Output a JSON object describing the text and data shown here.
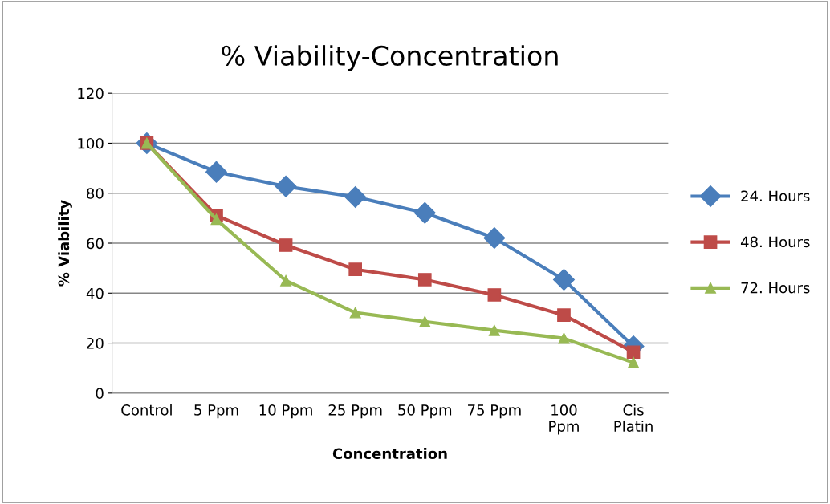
{
  "chart_data": {
    "type": "line",
    "title": "% Viability-Concentration",
    "xlabel": "Concentration",
    "ylabel": "% Viability",
    "categories": [
      "Control",
      "5 Ppm",
      "10 Ppm",
      "25 Ppm",
      "50 Ppm",
      "75 Ppm",
      "100\nPpm",
      "Cis\nPlatin"
    ],
    "series": [
      {
        "name": "24. Hours",
        "color": "#4a7ebb",
        "marker": "diamond",
        "values": [
          100,
          88.5,
          82.7,
          78.5,
          72.1,
          62.1,
          45.4,
          18.7
        ]
      },
      {
        "name": "48. Hours",
        "color": "#be4b48",
        "marker": "square",
        "values": [
          100,
          71.1,
          59.2,
          49.5,
          45.4,
          39.3,
          31.2,
          16.4
        ]
      },
      {
        "name": "72. Hours",
        "color": "#98b954",
        "marker": "triangle",
        "values": [
          100,
          69.5,
          45.0,
          32.2,
          28.6,
          25.1,
          21.9,
          12.2
        ]
      }
    ],
    "ylim": [
      0,
      120
    ],
    "yticks": [
      0,
      20,
      40,
      60,
      80,
      100,
      120
    ],
    "grid": "y",
    "legend": "right",
    "line_style": "solid"
  }
}
